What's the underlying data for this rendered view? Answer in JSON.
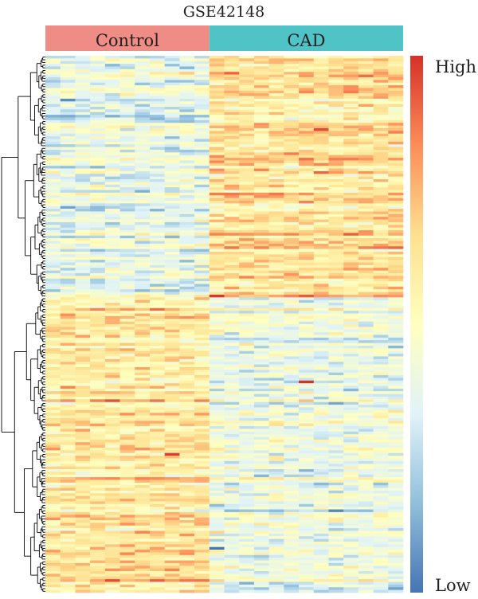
{
  "chart_data": {
    "type": "heatmap",
    "title": "GSE42148",
    "groups": [
      {
        "name": "Control",
        "n_columns": 11,
        "color": "#F08C86"
      },
      {
        "name": "CAD",
        "n_columns": 13,
        "color": "#4FC3C6"
      }
    ],
    "n_rows": 200,
    "row_dendrogram": true,
    "legend": {
      "high_label": "High",
      "low_label": "Low",
      "placement": "right",
      "colors": [
        "#D73027",
        "#FC8D59",
        "#FEE090",
        "#FFFFBF",
        "#E0F3F8",
        "#91BFDB",
        "#4575B4"
      ]
    },
    "block_means": [
      {
        "rows": "1-90",
        "Control": -0.45,
        "CAD": 0.55
      },
      {
        "rows": "91-180",
        "Control": 0.45,
        "CAD": -0.35
      },
      {
        "rows": "181-200",
        "Control": 0.6,
        "CAD": -0.4
      }
    ],
    "notable_cells": [
      {
        "row": 17,
        "column": 2,
        "value": -1.8
      },
      {
        "row": 28,
        "column": 19,
        "value": 1.8
      },
      {
        "row": 122,
        "column": 18,
        "value": 2.0
      },
      {
        "row": 149,
        "column": 9,
        "value": 1.9
      },
      {
        "row": 196,
        "column": 5,
        "value": 1.8
      },
      {
        "row": 184,
        "column": 12,
        "value": -2.0
      }
    ]
  }
}
